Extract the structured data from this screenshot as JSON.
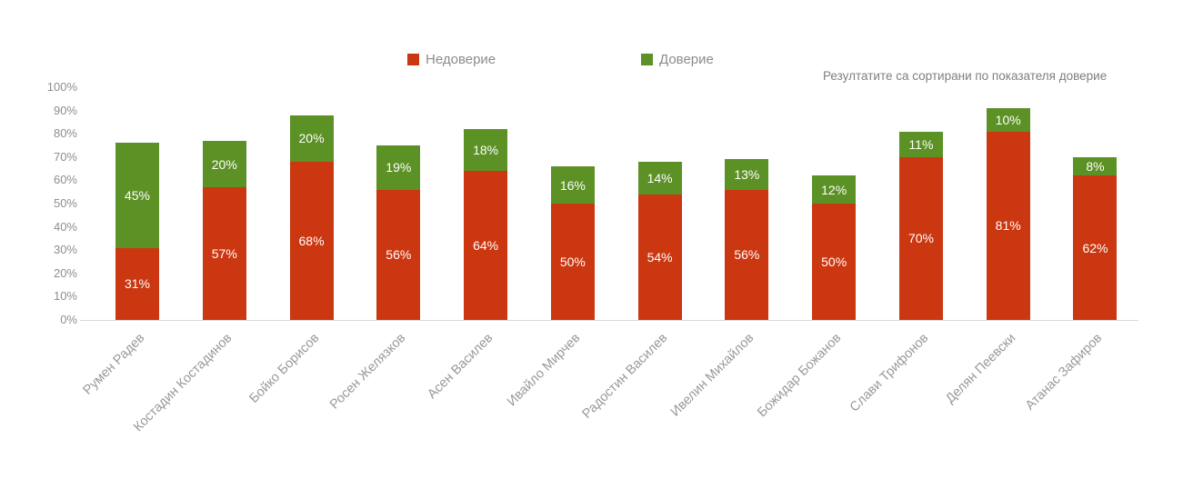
{
  "note": "Резултатите са сортирани по показателя доверие",
  "chart_data": {
    "type": "bar",
    "stacked": true,
    "title": "",
    "xlabel": "",
    "ylabel": "",
    "ylim": [
      0,
      100
    ],
    "grid": false,
    "legend_position": "top",
    "yticks": [
      "0%",
      "10%",
      "20%",
      "30%",
      "40%",
      "50%",
      "60%",
      "70%",
      "80%",
      "90%",
      "100%"
    ],
    "categories": [
      "Румен Радев",
      "Костадин Костадинов",
      "Бойко Борисов",
      "Росен Желязков",
      "Асен Василев",
      "Ивайло Мирчев",
      "Радостин Василев",
      "Ивелин Михайлов",
      "Божидар Божанов",
      "Слави Трифонов",
      "Делян Пеевски",
      "Атанас Зафиров"
    ],
    "series": [
      {
        "name": "Недоверие",
        "color": "#cb3711",
        "values": [
          31,
          57,
          68,
          56,
          64,
          50,
          54,
          56,
          50,
          70,
          81,
          62
        ]
      },
      {
        "name": "Доверие",
        "color": "#5c9126",
        "values": [
          45,
          20,
          20,
          19,
          18,
          16,
          14,
          13,
          12,
          11,
          10,
          8
        ]
      }
    ],
    "data_label_format": "{v}%"
  }
}
